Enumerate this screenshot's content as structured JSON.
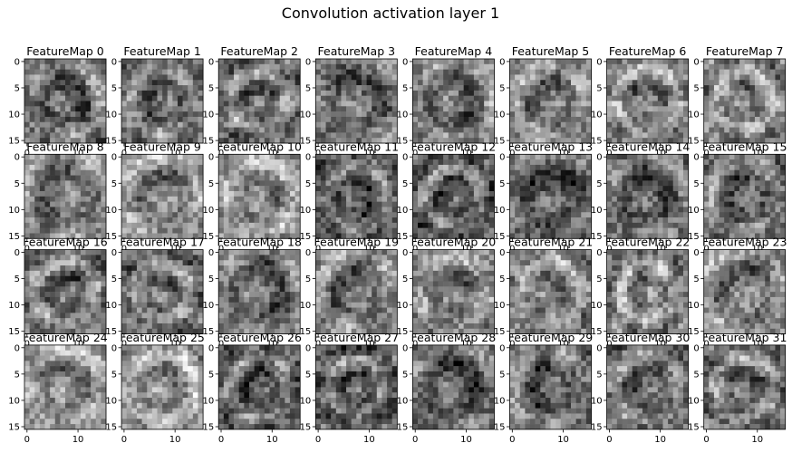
{
  "figure": {
    "title": "Convolution activation layer 1"
  },
  "chart_data": {
    "type": "heatmap",
    "title": "Convolution activation layer 1",
    "colormap": "gray",
    "grid": false,
    "rows": 4,
    "cols": 8,
    "image_size": 16,
    "xlim": [
      -0.5,
      15.5
    ],
    "ylim": [
      15.5,
      -0.5
    ],
    "x_ticks": [
      0,
      10
    ],
    "y_ticks": [
      0,
      5,
      10,
      15
    ],
    "panels": [
      {
        "title": "FeatureMap 0"
      },
      {
        "title": "FeatureMap 1"
      },
      {
        "title": "FeatureMap 2"
      },
      {
        "title": "FeatureMap 3"
      },
      {
        "title": "FeatureMap 4"
      },
      {
        "title": "FeatureMap 5"
      },
      {
        "title": "FeatureMap 6"
      },
      {
        "title": "FeatureMap 7"
      },
      {
        "title": "FeatureMap 8"
      },
      {
        "title": "FeatureMap 9"
      },
      {
        "title": "FeatureMap 10"
      },
      {
        "title": "FeatureMap 11"
      },
      {
        "title": "FeatureMap 12"
      },
      {
        "title": "FeatureMap 13"
      },
      {
        "title": "FeatureMap 14"
      },
      {
        "title": "FeatureMap 15"
      },
      {
        "title": "FeatureMap 16"
      },
      {
        "title": "FeatureMap 17"
      },
      {
        "title": "FeatureMap 18"
      },
      {
        "title": "FeatureMap 19"
      },
      {
        "title": "FeatureMap 20"
      },
      {
        "title": "FeatureMap 21"
      },
      {
        "title": "FeatureMap 22"
      },
      {
        "title": "FeatureMap 23"
      },
      {
        "title": "FeatureMap 24"
      },
      {
        "title": "FeatureMap 25"
      },
      {
        "title": "FeatureMap 26"
      },
      {
        "title": "FeatureMap 27"
      },
      {
        "title": "FeatureMap 28"
      },
      {
        "title": "FeatureMap 29"
      },
      {
        "title": "FeatureMap 30"
      },
      {
        "title": "FeatureMap 31"
      }
    ]
  }
}
